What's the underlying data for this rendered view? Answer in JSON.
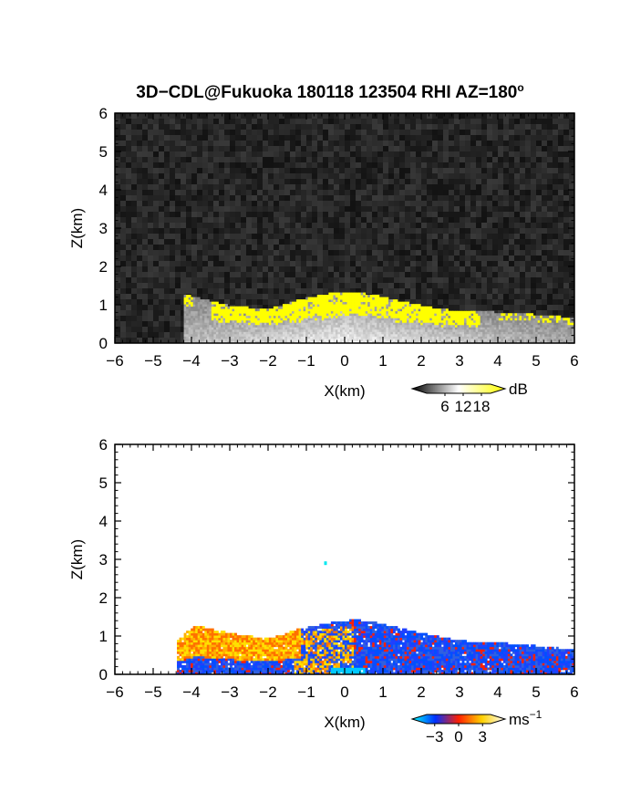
{
  "chart_data": [
    {
      "type": "heatmap",
      "title": "3D−CDL@Fukuoka 180118 123504 RHI AZ=180",
      "title_superscript": "o",
      "xlabel": "X(km)",
      "ylabel": "Z(km)",
      "xlim": [
        -6,
        6
      ],
      "ylim": [
        0,
        6
      ],
      "x_ticks": [
        "−6",
        "−5",
        "−4",
        "−3",
        "−2",
        "−1",
        "0",
        "1",
        "2",
        "3",
        "4",
        "5",
        "6"
      ],
      "y_ticks": [
        "0",
        "1",
        "2",
        "3",
        "4",
        "5",
        "6"
      ],
      "colorbar": {
        "label": "dB",
        "ticks": [
          "6",
          "12",
          "18"
        ],
        "range": [
          0,
          21
        ],
        "colors": [
          "#000000",
          "#ffffff",
          "#ffff00"
        ]
      },
      "background": "noise",
      "echo_top_profile": [
        {
          "x": -4.2,
          "z": 1.25
        },
        {
          "x": -3.8,
          "z": 1.15
        },
        {
          "x": -3.0,
          "z": 0.95
        },
        {
          "x": -2.0,
          "z": 0.85
        },
        {
          "x": -1.2,
          "z": 1.1
        },
        {
          "x": -0.5,
          "z": 1.25
        },
        {
          "x": 0.0,
          "z": 1.3
        },
        {
          "x": 0.7,
          "z": 1.25
        },
        {
          "x": 1.5,
          "z": 1.05
        },
        {
          "x": 2.5,
          "z": 0.85
        },
        {
          "x": 3.5,
          "z": 0.8
        },
        {
          "x": 4.5,
          "z": 0.75
        },
        {
          "x": 5.5,
          "z": 0.68
        },
        {
          "x": 6.0,
          "z": 0.6
        }
      ]
    },
    {
      "type": "heatmap",
      "xlabel": "X(km)",
      "ylabel": "Z(km)",
      "xlim": [
        -6,
        6
      ],
      "ylim": [
        0,
        6
      ],
      "x_ticks": [
        "−6",
        "−5",
        "−4",
        "−3",
        "−2",
        "−1",
        "0",
        "1",
        "2",
        "3",
        "4",
        "5",
        "6"
      ],
      "y_ticks": [
        "0",
        "1",
        "2",
        "3",
        "4",
        "5",
        "6"
      ],
      "colorbar": {
        "label": "ms",
        "label_superscript": "−1",
        "ticks": [
          "−3",
          "0",
          "3"
        ],
        "range": [
          -4,
          4
        ],
        "colors": [
          "#00ffff",
          "#0030ff",
          "#ff2000",
          "#ffd000",
          "#ffffff"
        ]
      },
      "isolated_point": {
        "x": -0.5,
        "z": 2.9,
        "value": -3.2
      },
      "echo_top_profile": [
        {
          "x": -4.4,
          "z": 0.85
        },
        {
          "x": -3.9,
          "z": 1.25
        },
        {
          "x": -3.0,
          "z": 1.05
        },
        {
          "x": -2.0,
          "z": 0.9
        },
        {
          "x": -1.2,
          "z": 1.15
        },
        {
          "x": -0.5,
          "z": 1.3
        },
        {
          "x": 0.3,
          "z": 1.4
        },
        {
          "x": 1.0,
          "z": 1.3
        },
        {
          "x": 2.0,
          "z": 1.05
        },
        {
          "x": 3.0,
          "z": 0.85
        },
        {
          "x": 4.0,
          "z": 0.8
        },
        {
          "x": 5.0,
          "z": 0.72
        },
        {
          "x": 6.0,
          "z": 0.62
        }
      ]
    }
  ]
}
